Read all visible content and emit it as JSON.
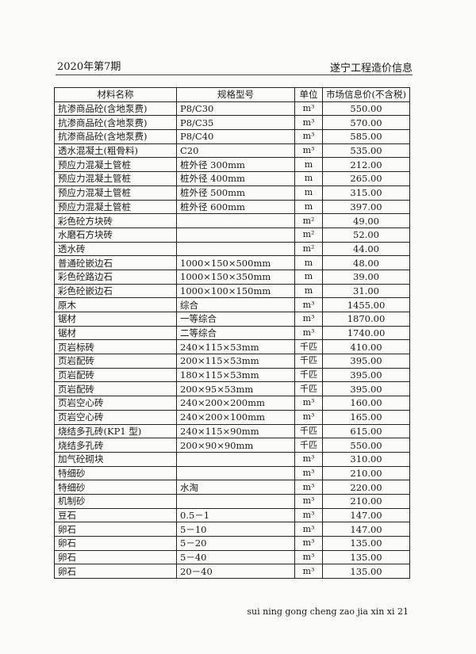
{
  "header": {
    "issue": "2020年第7期",
    "publication": "遂宁工程造价信息"
  },
  "table": {
    "columns": [
      "材料名称",
      "规格型号",
      "单位",
      "市场信息价(不含税)"
    ],
    "rows": [
      [
        "抗渗商品砼(含地泵费)",
        "P8/C30",
        "m³",
        "550.00"
      ],
      [
        "抗渗商品砼(含地泵费)",
        "P8/C35",
        "m³",
        "570.00"
      ],
      [
        "抗渗商品砼(含地泵费)",
        "P8/C40",
        "m³",
        "585.00"
      ],
      [
        "透水混凝土(粗骨料)",
        "C20",
        "m³",
        "535.00"
      ],
      [
        "预应力混凝土管桩",
        "桩外径 300mm",
        "m",
        "212.00"
      ],
      [
        "预应力混凝土管桩",
        "桩外径 400mm",
        "m",
        "265.00"
      ],
      [
        "预应力混凝土管桩",
        "桩外径 500mm",
        "m",
        "315.00"
      ],
      [
        "预应力混凝土管桩",
        "桩外径 600mm",
        "m",
        "397.00"
      ],
      [
        "彩色砼方块砖",
        "",
        "m²",
        "49.00"
      ],
      [
        "水磨石方块砖",
        "",
        "m²",
        "52.00"
      ],
      [
        "透水砖",
        "",
        "m²",
        "44.00"
      ],
      [
        "普通砼嵌边石",
        "1000×150×500mm",
        "m",
        "48.00"
      ],
      [
        "彩色砼路边石",
        "1000×150×350mm",
        "m",
        "39.00"
      ],
      [
        "彩色砼嵌边石",
        "1000×100×150mm",
        "m",
        "31.00"
      ],
      [
        "原木",
        "综合",
        "m³",
        "1455.00"
      ],
      [
        "锯材",
        "一等综合",
        "m³",
        "1870.00"
      ],
      [
        "锯材",
        "二等综合",
        "m³",
        "1740.00"
      ],
      [
        "页岩标砖",
        "240×115×53mm",
        "千匹",
        "410.00"
      ],
      [
        "页岩配砖",
        "200×115×53mm",
        "千匹",
        "395.00"
      ],
      [
        "页岩配砖",
        "180×115×53mm",
        "千匹",
        "395.00"
      ],
      [
        "页岩配砖",
        "200×95×53mm",
        "千匹",
        "395.00"
      ],
      [
        "页岩空心砖",
        "240×200×200mm",
        "m³",
        "160.00"
      ],
      [
        "页岩空心砖",
        "240×200×100mm",
        "m³",
        "165.00"
      ],
      [
        "烧结多孔砖(KP1 型)",
        "240×115×90mm",
        "千匹",
        "615.00"
      ],
      [
        "烧结多孔砖",
        "200×90×90mm",
        "千匹",
        "550.00"
      ],
      [
        "加气砼砌块",
        "",
        "m³",
        "310.00"
      ],
      [
        "特细砂",
        "",
        "m³",
        "210.00"
      ],
      [
        "特细砂",
        "水淘",
        "m³",
        "220.00"
      ],
      [
        "机制砂",
        "",
        "m³",
        "210.00"
      ],
      [
        "豆石",
        "0.5－1",
        "m³",
        "147.00"
      ],
      [
        "卵石",
        "5－10",
        "m³",
        "147.00"
      ],
      [
        "卵石",
        "5－20",
        "m³",
        "135.00"
      ],
      [
        "卵石",
        "5－40",
        "m³",
        "135.00"
      ],
      [
        "卵石",
        "20－40",
        "m³",
        "135.00"
      ]
    ]
  },
  "footer": {
    "text": "sui ning gong cheng zao jia xin xi 21"
  }
}
